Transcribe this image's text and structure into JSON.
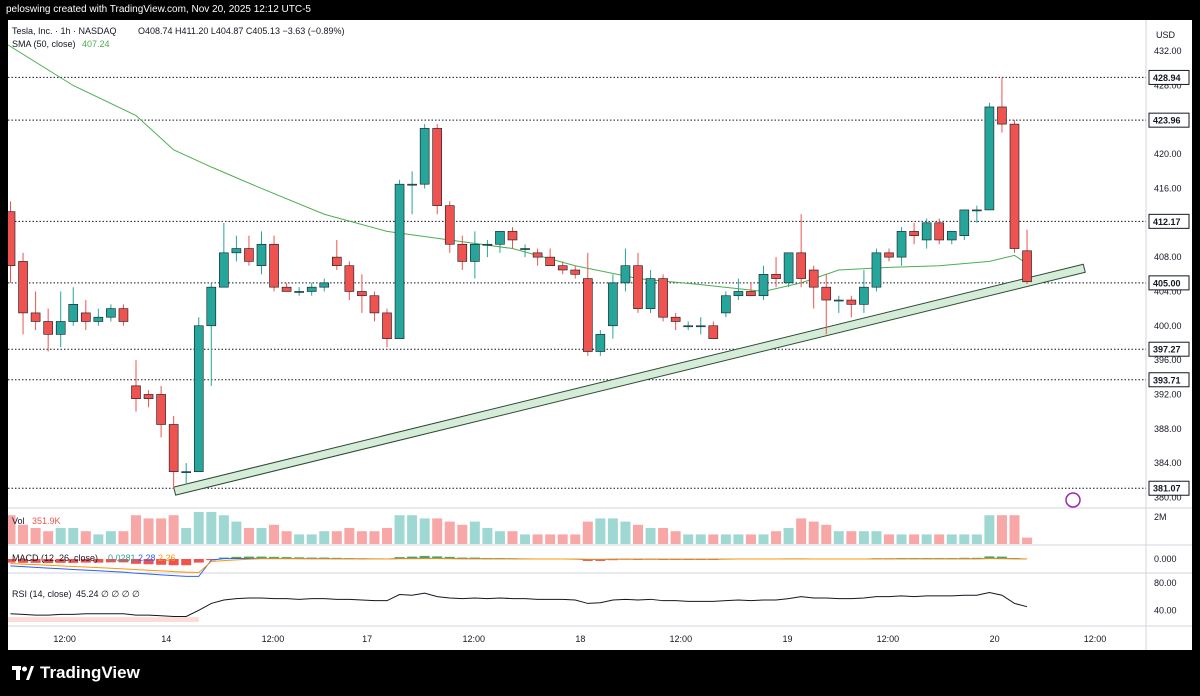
{
  "header": {
    "creator_line": "peloswing created with TradingView.com, Nov 20, 2025 12:12 UTC-5"
  },
  "legend": {
    "symbol_line": "Tesla, Inc. · 1h · NASDAQ",
    "ohlc": "O408.74  H411.20  L404.87  C405.13  −3.63 (−0.89%)",
    "sma_label": "SMA (50, close)",
    "sma_value": "407.24",
    "vol_label": "Vol",
    "vol_value": "351.9K",
    "macd_label": "MACD (12, 26, close)",
    "macd_values": [
      "0.0281",
      "2.28",
      "2.26"
    ],
    "rsi_label": "RSI (14, close)",
    "rsi_values": "45.24  ∅ ∅ ∅ ∅"
  },
  "axis": {
    "currency": "USD",
    "price_ticks": [
      "432.00",
      "428.00",
      "424.00",
      "420.00",
      "416.00",
      "412.00",
      "408.00",
      "404.00",
      "400.00",
      "396.00",
      "392.00",
      "388.00",
      "384.00",
      "380.00"
    ],
    "vol_tick": "2M",
    "macd_tick": "0.000",
    "rsi_ticks": [
      "80.00",
      "40.00"
    ],
    "time_labels": [
      "12:00",
      "14",
      "12:00",
      "17",
      "12:00",
      "18",
      "12:00",
      "19",
      "12:00",
      "20",
      "12:00"
    ]
  },
  "footer": {
    "brand": "TradingView"
  },
  "colors": {
    "up": "#26a69a",
    "down": "#ef5350",
    "sma": "#4caf50",
    "trend_fill": "#d4ecd8",
    "trend_stroke": "#2e4a34",
    "background": "#ffffff",
    "frame": "#000000"
  },
  "chart_data": {
    "type": "candlestick",
    "title": "Tesla, Inc. · 1h · NASDAQ",
    "ylabel": "USD",
    "ylim": [
      379,
      434
    ],
    "candles": [
      {
        "o": 413.3,
        "h": 414.5,
        "l": 405.0,
        "c": 407.0
      },
      {
        "o": 407.5,
        "h": 408.5,
        "l": 399.0,
        "c": 401.5
      },
      {
        "o": 401.5,
        "h": 404.0,
        "l": 399.5,
        "c": 400.5
      },
      {
        "o": 400.5,
        "h": 402.0,
        "l": 397.0,
        "c": 399.0
      },
      {
        "o": 399.0,
        "h": 404.0,
        "l": 397.5,
        "c": 400.5
      },
      {
        "o": 400.5,
        "h": 404.5,
        "l": 400.0,
        "c": 402.5
      },
      {
        "o": 401.5,
        "h": 403.0,
        "l": 399.5,
        "c": 400.5
      },
      {
        "o": 400.5,
        "h": 402.0,
        "l": 400.0,
        "c": 401.0
      },
      {
        "o": 401.0,
        "h": 402.5,
        "l": 400.5,
        "c": 402.0
      },
      {
        "o": 402.0,
        "h": 402.5,
        "l": 400.0,
        "c": 400.5
      },
      {
        "o": 393.0,
        "h": 396.0,
        "l": 390.0,
        "c": 391.5
      },
      {
        "o": 392.0,
        "h": 392.5,
        "l": 390.5,
        "c": 391.5
      },
      {
        "o": 392.0,
        "h": 393.0,
        "l": 387.0,
        "c": 388.5
      },
      {
        "o": 388.5,
        "h": 389.5,
        "l": 381.0,
        "c": 383.0
      },
      {
        "o": 383.0,
        "h": 384.0,
        "l": 381.5,
        "c": 383.0
      },
      {
        "o": 383.0,
        "h": 401.0,
        "l": 383.0,
        "c": 400.0
      },
      {
        "o": 400.0,
        "h": 405.0,
        "l": 393.0,
        "c": 404.5
      },
      {
        "o": 404.5,
        "h": 412.0,
        "l": 404.5,
        "c": 408.5
      },
      {
        "o": 408.5,
        "h": 410.5,
        "l": 407.5,
        "c": 409.0
      },
      {
        "o": 409.0,
        "h": 410.5,
        "l": 407.0,
        "c": 407.5
      },
      {
        "o": 407.0,
        "h": 411.0,
        "l": 406.0,
        "c": 409.5
      },
      {
        "o": 409.5,
        "h": 410.5,
        "l": 404.0,
        "c": 404.5
      },
      {
        "o": 404.5,
        "h": 405.0,
        "l": 404.0,
        "c": 404.0
      },
      {
        "o": 404.0,
        "h": 404.5,
        "l": 403.5,
        "c": 404.0
      },
      {
        "o": 404.0,
        "h": 405.0,
        "l": 403.5,
        "c": 404.5
      },
      {
        "o": 404.5,
        "h": 405.5,
        "l": 404.0,
        "c": 405.0
      },
      {
        "o": 408.0,
        "h": 410.0,
        "l": 406.5,
        "c": 407.0
      },
      {
        "o": 407.0,
        "h": 407.5,
        "l": 403.0,
        "c": 404.0
      },
      {
        "o": 404.0,
        "h": 406.0,
        "l": 401.5,
        "c": 403.5
      },
      {
        "o": 403.5,
        "h": 404.0,
        "l": 400.5,
        "c": 401.5
      },
      {
        "o": 401.5,
        "h": 402.0,
        "l": 397.5,
        "c": 398.5
      },
      {
        "o": 398.5,
        "h": 417.0,
        "l": 398.5,
        "c": 416.5
      },
      {
        "o": 416.5,
        "h": 418.0,
        "l": 413.0,
        "c": 416.5
      },
      {
        "o": 416.5,
        "h": 423.5,
        "l": 416.0,
        "c": 423.0
      },
      {
        "o": 423.0,
        "h": 423.5,
        "l": 413.0,
        "c": 414.0
      },
      {
        "o": 414.0,
        "h": 414.5,
        "l": 408.5,
        "c": 409.5
      },
      {
        "o": 409.5,
        "h": 410.5,
        "l": 406.5,
        "c": 407.5
      },
      {
        "o": 407.5,
        "h": 411.0,
        "l": 405.5,
        "c": 409.5
      },
      {
        "o": 409.5,
        "h": 410.0,
        "l": 408.0,
        "c": 409.5
      },
      {
        "o": 409.5,
        "h": 411.0,
        "l": 408.5,
        "c": 411.0
      },
      {
        "o": 411.0,
        "h": 411.5,
        "l": 409.0,
        "c": 410.0
      },
      {
        "o": 409.0,
        "h": 409.5,
        "l": 408.0,
        "c": 409.0
      },
      {
        "o": 408.5,
        "h": 409.0,
        "l": 407.0,
        "c": 408.0
      },
      {
        "o": 408.0,
        "h": 409.0,
        "l": 407.0,
        "c": 407.0
      },
      {
        "o": 407.0,
        "h": 407.5,
        "l": 406.0,
        "c": 406.5
      },
      {
        "o": 406.5,
        "h": 407.0,
        "l": 405.5,
        "c": 406.0
      },
      {
        "o": 405.5,
        "h": 408.5,
        "l": 396.5,
        "c": 397.0
      },
      {
        "o": 397.0,
        "h": 399.5,
        "l": 396.5,
        "c": 399.0
      },
      {
        "o": 400.0,
        "h": 406.0,
        "l": 398.5,
        "c": 405.0
      },
      {
        "o": 405.0,
        "h": 409.0,
        "l": 404.0,
        "c": 407.0
      },
      {
        "o": 407.0,
        "h": 408.5,
        "l": 401.5,
        "c": 402.0
      },
      {
        "o": 402.0,
        "h": 406.5,
        "l": 401.5,
        "c": 405.5
      },
      {
        "o": 405.5,
        "h": 406.0,
        "l": 400.5,
        "c": 401.0
      },
      {
        "o": 401.0,
        "h": 401.5,
        "l": 399.5,
        "c": 400.5
      },
      {
        "o": 400.0,
        "h": 400.5,
        "l": 399.5,
        "c": 400.0
      },
      {
        "o": 400.0,
        "h": 401.0,
        "l": 399.0,
        "c": 400.0
      },
      {
        "o": 400.0,
        "h": 400.5,
        "l": 398.5,
        "c": 398.5
      },
      {
        "o": 401.5,
        "h": 404.0,
        "l": 401.0,
        "c": 403.5
      },
      {
        "o": 403.5,
        "h": 405.5,
        "l": 403.0,
        "c": 404.0
      },
      {
        "o": 404.0,
        "h": 405.0,
        "l": 403.5,
        "c": 403.5
      },
      {
        "o": 403.5,
        "h": 407.0,
        "l": 403.0,
        "c": 406.0
      },
      {
        "o": 406.0,
        "h": 408.0,
        "l": 404.5,
        "c": 405.5
      },
      {
        "o": 405.0,
        "h": 408.5,
        "l": 404.5,
        "c": 408.5
      },
      {
        "o": 408.5,
        "h": 413.0,
        "l": 404.5,
        "c": 405.5
      },
      {
        "o": 406.5,
        "h": 407.0,
        "l": 402.0,
        "c": 404.5
      },
      {
        "o": 404.5,
        "h": 406.0,
        "l": 399.0,
        "c": 403.0
      },
      {
        "o": 403.0,
        "h": 403.5,
        "l": 401.5,
        "c": 403.0
      },
      {
        "o": 403.0,
        "h": 403.5,
        "l": 401.0,
        "c": 402.5
      },
      {
        "o": 402.5,
        "h": 406.5,
        "l": 401.5,
        "c": 404.5
      },
      {
        "o": 404.5,
        "h": 409.0,
        "l": 404.0,
        "c": 408.5
      },
      {
        "o": 408.5,
        "h": 409.0,
        "l": 407.5,
        "c": 408.0
      },
      {
        "o": 408.0,
        "h": 411.5,
        "l": 407.0,
        "c": 411.0
      },
      {
        "o": 411.0,
        "h": 412.0,
        "l": 409.5,
        "c": 410.5
      },
      {
        "o": 410.0,
        "h": 412.5,
        "l": 409.0,
        "c": 412.0
      },
      {
        "o": 412.0,
        "h": 412.5,
        "l": 409.5,
        "c": 410.0
      },
      {
        "o": 410.0,
        "h": 411.0,
        "l": 409.5,
        "c": 411.0
      },
      {
        "o": 410.5,
        "h": 413.5,
        "l": 410.0,
        "c": 413.5
      },
      {
        "o": 413.5,
        "h": 414.0,
        "l": 412.0,
        "c": 413.5
      },
      {
        "o": 413.5,
        "h": 426.0,
        "l": 413.5,
        "c": 425.5
      },
      {
        "o": 425.5,
        "h": 428.9,
        "l": 422.5,
        "c": 423.5
      },
      {
        "o": 423.5,
        "h": 424.0,
        "l": 408.5,
        "c": 409.0
      },
      {
        "o": 408.74,
        "h": 411.2,
        "l": 404.87,
        "c": 405.13
      }
    ],
    "sma50": [
      [
        -0.5,
        433.0
      ],
      [
        5,
        428.0
      ],
      [
        10,
        424.5
      ],
      [
        13,
        420.5
      ],
      [
        16,
        418.5
      ],
      [
        20,
        416.0
      ],
      [
        25,
        413.0
      ],
      [
        30,
        411.0
      ],
      [
        35,
        410.0
      ],
      [
        40,
        409.0
      ],
      [
        45,
        407.0
      ],
      [
        50,
        405.5
      ],
      [
        55,
        404.8
      ],
      [
        60,
        404.0
      ],
      [
        63,
        405.0
      ],
      [
        66,
        406.5
      ],
      [
        70,
        406.8
      ],
      [
        74,
        407.0
      ],
      [
        78,
        407.5
      ],
      [
        80,
        408.2
      ],
      [
        81,
        407.24
      ]
    ],
    "trendline": {
      "from": [
        13,
        381.2
      ],
      "to": [
        85,
        406.0
      ]
    },
    "horizontal_levels": [
      428.94,
      423.96,
      412.17,
      405.0,
      397.27,
      393.71,
      381.07
    ],
    "level_labels": [
      "428.94",
      "423.96",
      "412.17",
      "405.00",
      "397.27",
      "393.71",
      "381.07"
    ],
    "volume": [
      0.9,
      0.6,
      0.5,
      0.4,
      0.5,
      0.5,
      0.4,
      0.3,
      0.4,
      0.4,
      0.9,
      0.8,
      0.8,
      0.9,
      0.5,
      1.0,
      1.0,
      0.9,
      0.7,
      0.5,
      0.5,
      0.6,
      0.4,
      0.3,
      0.3,
      0.4,
      0.4,
      0.5,
      0.4,
      0.4,
      0.5,
      0.9,
      0.9,
      0.8,
      0.8,
      0.7,
      0.6,
      0.7,
      0.5,
      0.4,
      0.4,
      0.3,
      0.3,
      0.3,
      0.3,
      0.3,
      0.7,
      0.8,
      0.8,
      0.7,
      0.6,
      0.5,
      0.5,
      0.4,
      0.3,
      0.3,
      0.3,
      0.3,
      0.3,
      0.3,
      0.3,
      0.4,
      0.5,
      0.8,
      0.7,
      0.6,
      0.4,
      0.4,
      0.4,
      0.4,
      0.3,
      0.3,
      0.3,
      0.3,
      0.3,
      0.3,
      0.3,
      0.3,
      0.9,
      0.9,
      0.9,
      0.2
    ],
    "rsi": [
      35,
      34,
      33,
      33,
      34,
      34,
      35,
      35,
      35,
      35,
      33,
      33,
      32,
      31,
      31,
      40,
      50,
      55,
      57,
      58,
      58,
      57,
      57,
      56,
      57,
      57,
      56,
      56,
      55,
      54,
      54,
      63,
      62,
      65,
      60,
      58,
      57,
      58,
      57,
      58,
      57,
      57,
      56,
      56,
      56,
      55,
      50,
      51,
      55,
      56,
      55,
      56,
      54,
      54,
      53,
      53,
      53,
      54,
      55,
      54,
      55,
      55,
      57,
      60,
      58,
      58,
      57,
      57,
      58,
      60,
      60,
      61,
      60,
      61,
      61,
      61,
      62,
      62,
      66,
      62,
      50,
      45.24
    ],
    "macd_hist": [
      -1.5,
      -1.6,
      -1.6,
      -1.7,
      -1.6,
      -1.6,
      -1.5,
      -1.5,
      -1.4,
      -1.4,
      -2.0,
      -2.2,
      -2.4,
      -2.6,
      -2.6,
      -1.5,
      -0.5,
      0.6,
      0.9,
      1.0,
      1.0,
      0.9,
      0.8,
      0.7,
      0.6,
      0.6,
      0.5,
      0.4,
      0.3,
      0.2,
      0.1,
      0.8,
      1.0,
      1.3,
      1.1,
      0.9,
      0.6,
      0.6,
      0.4,
      0.4,
      0.3,
      0.2,
      0.1,
      0.0,
      -0.1,
      -0.2,
      -0.8,
      -0.8,
      -0.5,
      -0.3,
      -0.4,
      -0.3,
      -0.4,
      -0.4,
      -0.4,
      -0.4,
      -0.4,
      -0.2,
      -0.1,
      -0.1,
      0.1,
      0.1,
      0.2,
      0.2,
      0.1,
      0.0,
      0.0,
      0.0,
      0.1,
      0.3,
      0.3,
      0.4,
      0.4,
      0.4,
      0.4,
      0.4,
      0.5,
      0.5,
      1.1,
      1.0,
      0.4,
      0.0281
    ]
  }
}
